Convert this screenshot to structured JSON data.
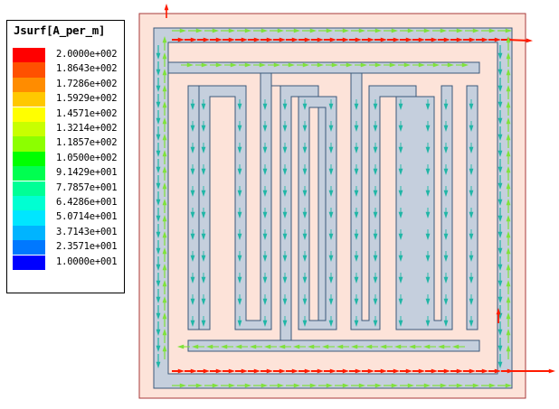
{
  "legend": {
    "title": "Jsurf[A_per_m]",
    "entries": [
      {
        "label": "2.0000e+002",
        "color": "#ff0000"
      },
      {
        "label": "1.8643e+002",
        "color": "#ff5000"
      },
      {
        "label": "1.7286e+002",
        "color": "#ff8c00"
      },
      {
        "label": "1.5929e+002",
        "color": "#ffc800"
      },
      {
        "label": "1.4571e+002",
        "color": "#ffff00"
      },
      {
        "label": "1.3214e+002",
        "color": "#c8ff00"
      },
      {
        "label": "1.1857e+002",
        "color": "#8cff00"
      },
      {
        "label": "1.0500e+002",
        "color": "#00ff00"
      },
      {
        "label": "9.1429e+001",
        "color": "#00ff50"
      },
      {
        "label": "7.7857e+001",
        "color": "#00ff96"
      },
      {
        "label": "6.4286e+001",
        "color": "#00ffd2"
      },
      {
        "label": "5.0714e+001",
        "color": "#00e6ff"
      },
      {
        "label": "3.7143e+001",
        "color": "#00b4ff"
      },
      {
        "label": "2.3571e+001",
        "color": "#0078ff"
      },
      {
        "label": "1.0000e+001",
        "color": "#0000ff"
      }
    ]
  },
  "colors": {
    "substrate": "#fde3d9",
    "substrate_border": "#a83a3a",
    "trace": "#c5cfdd",
    "trace_edge": "#3a5a7a",
    "arrow_high": "#ff1a00",
    "arrow_mid": "#7fe23a",
    "arrow_low": "#1fb6a6"
  }
}
